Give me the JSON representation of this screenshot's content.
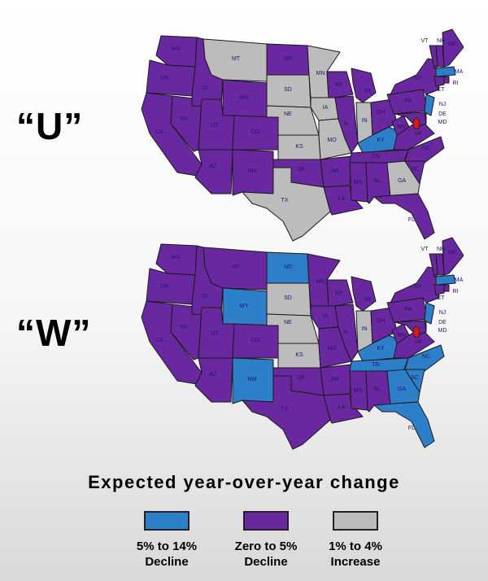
{
  "scenarios": [
    {
      "label": "“U”",
      "states": {
        "WA": "purple",
        "OR": "purple",
        "CA": "purple",
        "NV": "purple",
        "ID": "purple",
        "MT": "gray",
        "WY": "purple",
        "UT": "purple",
        "AZ": "purple",
        "CO": "purple",
        "NM": "purple",
        "ND": "purple",
        "SD": "gray",
        "NE": "gray",
        "KS": "gray",
        "OK": "purple",
        "TX": "gray",
        "MN": "gray",
        "IA": "gray",
        "MO": "gray",
        "AR": "purple",
        "LA": "purple",
        "WI": "purple",
        "IL": "purple",
        "MS": "purple",
        "MI": "purple",
        "IN": "gray",
        "KY": "blue",
        "TN": "purple",
        "AL": "purple",
        "GA": "gray",
        "FL": "purple",
        "OH": "purple",
        "WV": "purple",
        "VA": "purple",
        "NC": "purple",
        "SC": "purple",
        "PA": "purple",
        "NY": "purple",
        "VT": "purple",
        "NH": "purple",
        "ME": "purple",
        "MA": "blue",
        "CT": "purple",
        "RI": "purple",
        "NJ": "blue",
        "DE": "purple",
        "MD": "purple"
      }
    },
    {
      "label": "“W”",
      "states": {
        "WA": "purple",
        "OR": "purple",
        "CA": "purple",
        "NV": "purple",
        "ID": "purple",
        "MT": "purple",
        "WY": "blue",
        "UT": "purple",
        "AZ": "purple",
        "CO": "purple",
        "NM": "blue",
        "ND": "blue",
        "SD": "gray",
        "NE": "gray",
        "KS": "gray",
        "OK": "purple",
        "TX": "purple",
        "MN": "purple",
        "IA": "purple",
        "MO": "purple",
        "AR": "purple",
        "LA": "purple",
        "WI": "purple",
        "IL": "purple",
        "MS": "purple",
        "MI": "purple",
        "IN": "gray",
        "KY": "blue",
        "TN": "blue",
        "AL": "purple",
        "GA": "blue",
        "FL": "blue",
        "OH": "purple",
        "WV": "purple",
        "VA": "purple",
        "NC": "blue",
        "SC": "blue",
        "PA": "purple",
        "NY": "purple",
        "VT": "purple",
        "NH": "purple",
        "ME": "purple",
        "MA": "blue",
        "CT": "purple",
        "RI": "purple",
        "NJ": "blue",
        "DE": "purple",
        "MD": "purple"
      }
    }
  ],
  "colors": {
    "blue": "#2e7fc9",
    "purple": "#6a28a0",
    "gray": "#bcbcbc",
    "border": "#1a1a1a",
    "dc": "#d81818"
  },
  "legend": {
    "title": "Expected year-over-year change",
    "items": [
      {
        "key": "blue",
        "line1": "5% to 14%",
        "line2": "Decline"
      },
      {
        "key": "purple",
        "line1": "Zero to  5%",
        "line2": "Decline"
      },
      {
        "key": "gray",
        "line1": "1% to 4%",
        "line2": "Increase"
      }
    ]
  }
}
